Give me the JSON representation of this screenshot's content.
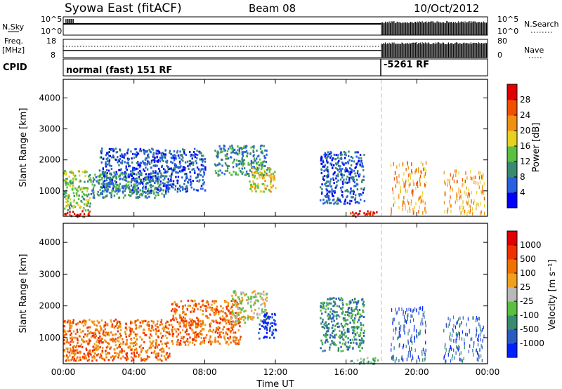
{
  "header": {
    "title": "Syowa East (fitACF)",
    "beam": "Beam 08",
    "date": "10/Oct/2012"
  },
  "top_panels": {
    "nsky_label": "N.Sky",
    "nsky_ticks": [
      "10^5",
      "10^0"
    ],
    "nsearch_label": "N.Search",
    "nsearch_ticks": [
      "10^5",
      "10^0"
    ],
    "freq_label_1": "Freq.",
    "freq_label_2": "[MHz]",
    "freq_ticks": [
      "18",
      "8"
    ],
    "nave_label": "Nave",
    "nave_ticks": [
      "80",
      "0"
    ],
    "cpid_label": "CPID",
    "cpid_1": "normal (fast) 151 RF",
    "cpid_2": "-5261 RF"
  },
  "chart_data": [
    {
      "type": "heatmap",
      "name": "power",
      "xlabel": "Time UT",
      "ylabel": "Slant Range [km]",
      "x_ticks": [
        "00:00",
        "04:00",
        "08:00",
        "12:00",
        "16:00",
        "20:00",
        "00:00"
      ],
      "xlim_hours": [
        0,
        24
      ],
      "ylim": [
        180,
        4600
      ],
      "y_ticks": [
        1000,
        2000,
        3000,
        4000
      ],
      "colorbar_label": "Power [dB]",
      "colorbar_ticks": [
        "4",
        "8",
        "12",
        "16",
        "20",
        "24",
        "28"
      ],
      "colorbar_colors": [
        "#0000ff",
        "#2860e0",
        "#3a8a70",
        "#5ac040",
        "#e8d020",
        "#f09010",
        "#f05000",
        "#e00000"
      ],
      "mode_change_hour": 18.0,
      "regions": [
        {
          "t": [
            0.0,
            1.5
          ],
          "r": [
            400,
            1700
          ],
          "lvl": 3
        },
        {
          "t": [
            0.0,
            1.5
          ],
          "r": [
            180,
            400
          ],
          "lvl": 7
        },
        {
          "t": [
            1.5,
            6.0
          ],
          "r": [
            800,
            1600
          ],
          "lvl": 2
        },
        {
          "t": [
            2.0,
            8.0
          ],
          "r": [
            1000,
            2400
          ],
          "lvl": 1
        },
        {
          "t": [
            8.5,
            11.5
          ],
          "r": [
            1500,
            2500
          ],
          "lvl": 2
        },
        {
          "t": [
            10.5,
            12.0
          ],
          "r": [
            1000,
            1800
          ],
          "lvl": 4
        },
        {
          "t": [
            14.5,
            17.0
          ],
          "r": [
            600,
            2300
          ],
          "lvl": 1
        },
        {
          "t": [
            16.2,
            17.8
          ],
          "r": [
            200,
            400
          ],
          "lvl": 7
        },
        {
          "t": [
            18.5,
            20.5
          ],
          "r": [
            300,
            2000
          ],
          "lvl": 5
        },
        {
          "t": [
            21.5,
            23.8
          ],
          "r": [
            300,
            1700
          ],
          "lvl": 5
        }
      ]
    },
    {
      "type": "heatmap",
      "name": "velocity",
      "xlabel": "Time UT",
      "ylabel": "Slant Range [km]",
      "x_ticks": [
        "00:00",
        "04:00",
        "08:00",
        "12:00",
        "16:00",
        "20:00",
        "00:00"
      ],
      "xlim_hours": [
        0,
        24
      ],
      "ylim": [
        180,
        4600
      ],
      "y_ticks": [
        1000,
        2000,
        3000,
        4000
      ],
      "colorbar_label": "Velocity [m s⁻¹]",
      "colorbar_ticks": [
        "1000",
        "500",
        "100",
        "25",
        "-25",
        "-100",
        "-500",
        "-1000"
      ],
      "colorbar_colors": [
        "#0022ff",
        "#2a5cc0",
        "#3a8a70",
        "#5ac040",
        "#b8b8b8",
        "#f0a020",
        "#f07000",
        "#f03000",
        "#e00000"
      ],
      "mode_change_hour": 18.0,
      "regions": [
        {
          "t": [
            0.0,
            6.0
          ],
          "r": [
            300,
            1600
          ],
          "lvl": 6
        },
        {
          "t": [
            6.0,
            10.0
          ],
          "r": [
            800,
            2200
          ],
          "lvl": 6
        },
        {
          "t": [
            9.5,
            11.5
          ],
          "r": [
            1500,
            2500
          ],
          "lvl": 4
        },
        {
          "t": [
            11.0,
            12.0
          ],
          "r": [
            1000,
            1800
          ],
          "lvl": 0
        },
        {
          "t": [
            14.5,
            17.0
          ],
          "r": [
            600,
            2300
          ],
          "lvl": 2
        },
        {
          "t": [
            16.2,
            17.8
          ],
          "r": [
            200,
            400
          ],
          "lvl": 3
        },
        {
          "t": [
            18.5,
            20.5
          ],
          "r": [
            300,
            2000
          ],
          "lvl": 1
        },
        {
          "t": [
            21.5,
            23.8
          ],
          "r": [
            300,
            1700
          ],
          "lvl": 1
        }
      ]
    }
  ]
}
